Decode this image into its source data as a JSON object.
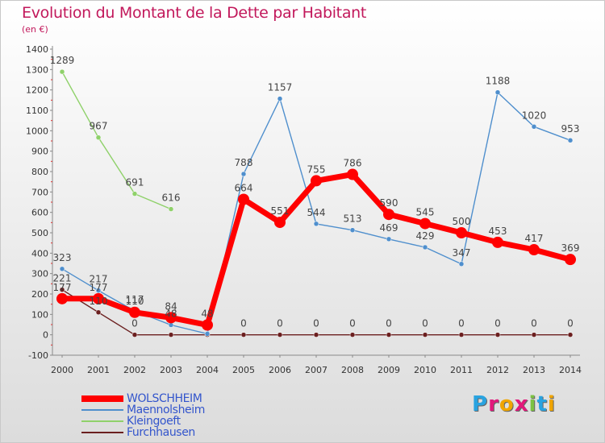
{
  "chart_data": {
    "type": "line",
    "title": "Evolution du Montant de la Dette par Habitant",
    "subtitle": "(en €)",
    "categories": [
      "2000",
      "2001",
      "2002",
      "2003",
      "2004",
      "2005",
      "2006",
      "2007",
      "2008",
      "2009",
      "2010",
      "2011",
      "2012",
      "2013",
      "2014"
    ],
    "ylim": [
      -100,
      1400
    ],
    "yticks": [
      -100,
      0,
      100,
      200,
      300,
      400,
      500,
      600,
      700,
      800,
      900,
      1000,
      1100,
      1200,
      1300,
      1400
    ],
    "grid": false,
    "legend_position": "bottom-left",
    "series": [
      {
        "name": "WOLSCHHEIM",
        "color": "#ff0000",
        "values": [
          177,
          177,
          110,
          84,
          48,
          664,
          551,
          755,
          786,
          590,
          545,
          500,
          453,
          417,
          369
        ],
        "labels": [
          "177",
          "177",
          "110",
          "84",
          "48",
          "664",
          "551",
          "755",
          "786",
          "590",
          "545",
          "500",
          "453",
          "417",
          "369"
        ]
      },
      {
        "name": "Maennolsheim",
        "color": "#4f8fcd",
        "values": [
          323,
          217,
          117,
          48,
          5,
          788,
          1157,
          544,
          513,
          469,
          429,
          347,
          1188,
          1020,
          953
        ],
        "labels": [
          "323",
          "217",
          "117",
          "48",
          "",
          "788",
          "1157",
          "544",
          "513",
          "469",
          "429",
          "347",
          "1188",
          "1020",
          "953"
        ]
      },
      {
        "name": "Kleingoeft",
        "color": "#8fd16a",
        "values": [
          1289,
          967,
          691,
          616,
          null,
          null,
          null,
          null,
          null,
          null,
          null,
          null,
          null,
          null,
          null
        ],
        "labels": [
          "1289",
          "967",
          "691",
          "616",
          "",
          "",
          "",
          "",
          "",
          "",
          "",
          "",
          "",
          "",
          ""
        ]
      },
      {
        "name": "Furchhausen",
        "color": "#6b1f1f",
        "values": [
          221,
          110,
          0,
          0,
          0,
          0,
          0,
          0,
          0,
          0,
          0,
          0,
          0,
          0,
          0
        ],
        "labels": [
          "221",
          "110",
          "0",
          "",
          "",
          "0",
          "0",
          "0",
          "0",
          "0",
          "0",
          "0",
          "0",
          "0",
          "0"
        ]
      }
    ]
  },
  "logo": {
    "letters": [
      "P",
      "r",
      "o",
      "x",
      "i",
      "t",
      "i"
    ],
    "colors": [
      "#29a3e0",
      "#e2187b",
      "#f0a500",
      "#e2187b",
      "#7cc242",
      "#29a3e0",
      "#f0a500"
    ]
  }
}
